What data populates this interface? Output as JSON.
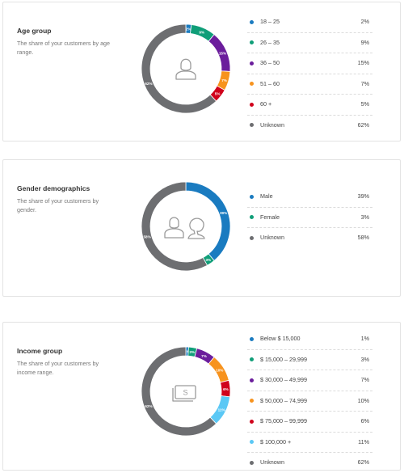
{
  "chart_data": [
    {
      "type": "pie",
      "title": "Age group",
      "subtitle": "The share of your customers by age range.",
      "center_icon": "person-icon",
      "categories": [
        "18 – 25",
        "26 – 35",
        "36 – 50",
        "51 – 60",
        "60 +",
        "Unknown"
      ],
      "values": [
        2,
        9,
        15,
        7,
        5,
        62
      ],
      "labels": [
        "2%",
        "9%",
        "15%",
        "7%",
        "5%",
        "62%"
      ],
      "colors": [
        "#1a7bc0",
        "#0f9e78",
        "#6b1d9c",
        "#f7931e",
        "#d0021b",
        "#6d6e71"
      ]
    },
    {
      "type": "pie",
      "title": "Gender demographics",
      "subtitle": "The share of your customers by gender.",
      "center_icon": "male-female-icon",
      "categories": [
        "Male",
        "Female",
        "Unknown"
      ],
      "values": [
        39,
        3,
        58
      ],
      "labels": [
        "39%",
        "3%",
        "58%"
      ],
      "colors": [
        "#1a7bc0",
        "#0f9e78",
        "#6d6e71"
      ]
    },
    {
      "type": "pie",
      "title": "Income group",
      "subtitle": "The share of your customers by income range.",
      "center_icon": "money-bill-icon",
      "center_symbol": "S",
      "categories": [
        "Below $ 15,000",
        "$ 15,000 – 29,999",
        "$ 30,000 – 49,999",
        "$ 50,000 – 74,999",
        "$ 75,000 – 99,999",
        "$ 100,000 +",
        "Unknown"
      ],
      "values": [
        1,
        3,
        7,
        10,
        6,
        11,
        62
      ],
      "labels": [
        "1%",
        "3%",
        "7%",
        "10%",
        "6%",
        "11%",
        "62%"
      ],
      "colors": [
        "#1a7bc0",
        "#0f9e78",
        "#6b1d9c",
        "#f7931e",
        "#d0021b",
        "#5bc8f5",
        "#6d6e71"
      ]
    }
  ]
}
